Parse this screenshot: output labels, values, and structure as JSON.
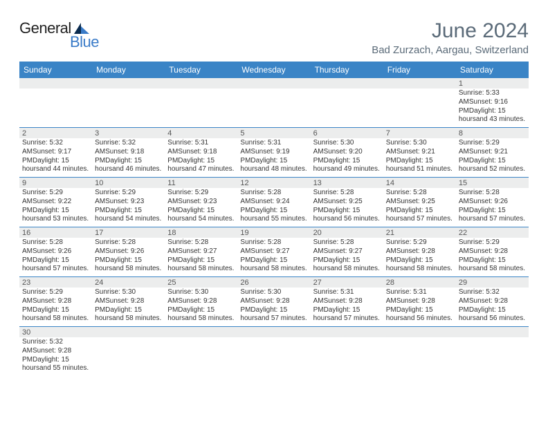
{
  "logo": {
    "text1": "General",
    "text2": "Blue",
    "color1": "#222222",
    "color2": "#3a7bc8"
  },
  "title": "June 2024",
  "location": "Bad Zurzach, Aargau, Switzerland",
  "colors": {
    "header_bar": "#3a84c6",
    "strip_bg": "#eceded",
    "title_text": "#5a6a78"
  },
  "dayHeaders": [
    "Sunday",
    "Monday",
    "Tuesday",
    "Wednesday",
    "Thursday",
    "Friday",
    "Saturday"
  ],
  "weeks": [
    [
      null,
      null,
      null,
      null,
      null,
      null,
      {
        "n": "1",
        "sunrise": "Sunrise: 5:33 AM",
        "sunset": "Sunset: 9:16 PM",
        "daylight1": "Daylight: 15 hours",
        "daylight2": "and 43 minutes."
      }
    ],
    [
      {
        "n": "2",
        "sunrise": "Sunrise: 5:32 AM",
        "sunset": "Sunset: 9:17 PM",
        "daylight1": "Daylight: 15 hours",
        "daylight2": "and 44 minutes."
      },
      {
        "n": "3",
        "sunrise": "Sunrise: 5:32 AM",
        "sunset": "Sunset: 9:18 PM",
        "daylight1": "Daylight: 15 hours",
        "daylight2": "and 46 minutes."
      },
      {
        "n": "4",
        "sunrise": "Sunrise: 5:31 AM",
        "sunset": "Sunset: 9:18 PM",
        "daylight1": "Daylight: 15 hours",
        "daylight2": "and 47 minutes."
      },
      {
        "n": "5",
        "sunrise": "Sunrise: 5:31 AM",
        "sunset": "Sunset: 9:19 PM",
        "daylight1": "Daylight: 15 hours",
        "daylight2": "and 48 minutes."
      },
      {
        "n": "6",
        "sunrise": "Sunrise: 5:30 AM",
        "sunset": "Sunset: 9:20 PM",
        "daylight1": "Daylight: 15 hours",
        "daylight2": "and 49 minutes."
      },
      {
        "n": "7",
        "sunrise": "Sunrise: 5:30 AM",
        "sunset": "Sunset: 9:21 PM",
        "daylight1": "Daylight: 15 hours",
        "daylight2": "and 51 minutes."
      },
      {
        "n": "8",
        "sunrise": "Sunrise: 5:29 AM",
        "sunset": "Sunset: 9:21 PM",
        "daylight1": "Daylight: 15 hours",
        "daylight2": "and 52 minutes."
      }
    ],
    [
      {
        "n": "9",
        "sunrise": "Sunrise: 5:29 AM",
        "sunset": "Sunset: 9:22 PM",
        "daylight1": "Daylight: 15 hours",
        "daylight2": "and 53 minutes."
      },
      {
        "n": "10",
        "sunrise": "Sunrise: 5:29 AM",
        "sunset": "Sunset: 9:23 PM",
        "daylight1": "Daylight: 15 hours",
        "daylight2": "and 54 minutes."
      },
      {
        "n": "11",
        "sunrise": "Sunrise: 5:29 AM",
        "sunset": "Sunset: 9:23 PM",
        "daylight1": "Daylight: 15 hours",
        "daylight2": "and 54 minutes."
      },
      {
        "n": "12",
        "sunrise": "Sunrise: 5:28 AM",
        "sunset": "Sunset: 9:24 PM",
        "daylight1": "Daylight: 15 hours",
        "daylight2": "and 55 minutes."
      },
      {
        "n": "13",
        "sunrise": "Sunrise: 5:28 AM",
        "sunset": "Sunset: 9:25 PM",
        "daylight1": "Daylight: 15 hours",
        "daylight2": "and 56 minutes."
      },
      {
        "n": "14",
        "sunrise": "Sunrise: 5:28 AM",
        "sunset": "Sunset: 9:25 PM",
        "daylight1": "Daylight: 15 hours",
        "daylight2": "and 57 minutes."
      },
      {
        "n": "15",
        "sunrise": "Sunrise: 5:28 AM",
        "sunset": "Sunset: 9:26 PM",
        "daylight1": "Daylight: 15 hours",
        "daylight2": "and 57 minutes."
      }
    ],
    [
      {
        "n": "16",
        "sunrise": "Sunrise: 5:28 AM",
        "sunset": "Sunset: 9:26 PM",
        "daylight1": "Daylight: 15 hours",
        "daylight2": "and 57 minutes."
      },
      {
        "n": "17",
        "sunrise": "Sunrise: 5:28 AM",
        "sunset": "Sunset: 9:26 PM",
        "daylight1": "Daylight: 15 hours",
        "daylight2": "and 58 minutes."
      },
      {
        "n": "18",
        "sunrise": "Sunrise: 5:28 AM",
        "sunset": "Sunset: 9:27 PM",
        "daylight1": "Daylight: 15 hours",
        "daylight2": "and 58 minutes."
      },
      {
        "n": "19",
        "sunrise": "Sunrise: 5:28 AM",
        "sunset": "Sunset: 9:27 PM",
        "daylight1": "Daylight: 15 hours",
        "daylight2": "and 58 minutes."
      },
      {
        "n": "20",
        "sunrise": "Sunrise: 5:28 AM",
        "sunset": "Sunset: 9:27 PM",
        "daylight1": "Daylight: 15 hours",
        "daylight2": "and 58 minutes."
      },
      {
        "n": "21",
        "sunrise": "Sunrise: 5:29 AM",
        "sunset": "Sunset: 9:28 PM",
        "daylight1": "Daylight: 15 hours",
        "daylight2": "and 58 minutes."
      },
      {
        "n": "22",
        "sunrise": "Sunrise: 5:29 AM",
        "sunset": "Sunset: 9:28 PM",
        "daylight1": "Daylight: 15 hours",
        "daylight2": "and 58 minutes."
      }
    ],
    [
      {
        "n": "23",
        "sunrise": "Sunrise: 5:29 AM",
        "sunset": "Sunset: 9:28 PM",
        "daylight1": "Daylight: 15 hours",
        "daylight2": "and 58 minutes."
      },
      {
        "n": "24",
        "sunrise": "Sunrise: 5:30 AM",
        "sunset": "Sunset: 9:28 PM",
        "daylight1": "Daylight: 15 hours",
        "daylight2": "and 58 minutes."
      },
      {
        "n": "25",
        "sunrise": "Sunrise: 5:30 AM",
        "sunset": "Sunset: 9:28 PM",
        "daylight1": "Daylight: 15 hours",
        "daylight2": "and 58 minutes."
      },
      {
        "n": "26",
        "sunrise": "Sunrise: 5:30 AM",
        "sunset": "Sunset: 9:28 PM",
        "daylight1": "Daylight: 15 hours",
        "daylight2": "and 57 minutes."
      },
      {
        "n": "27",
        "sunrise": "Sunrise: 5:31 AM",
        "sunset": "Sunset: 9:28 PM",
        "daylight1": "Daylight: 15 hours",
        "daylight2": "and 57 minutes."
      },
      {
        "n": "28",
        "sunrise": "Sunrise: 5:31 AM",
        "sunset": "Sunset: 9:28 PM",
        "daylight1": "Daylight: 15 hours",
        "daylight2": "and 56 minutes."
      },
      {
        "n": "29",
        "sunrise": "Sunrise: 5:32 AM",
        "sunset": "Sunset: 9:28 PM",
        "daylight1": "Daylight: 15 hours",
        "daylight2": "and 56 minutes."
      }
    ],
    [
      {
        "n": "30",
        "sunrise": "Sunrise: 5:32 AM",
        "sunset": "Sunset: 9:28 PM",
        "daylight1": "Daylight: 15 hours",
        "daylight2": "and 55 minutes."
      },
      null,
      null,
      null,
      null,
      null,
      null
    ]
  ]
}
